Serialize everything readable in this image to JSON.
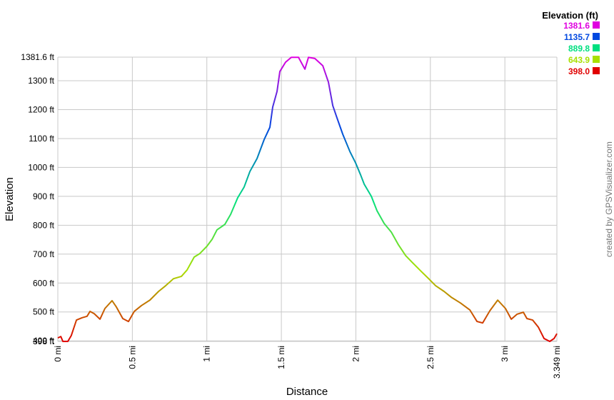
{
  "chart_data": {
    "type": "line",
    "legend_title": "Elevation (ft)",
    "x_label": "Distance",
    "y_label": "Elevation",
    "credit": "created by GPSVisualizer.com",
    "grid": true,
    "legend_position": "top-right",
    "color_scale": [
      {
        "value": 1381.6,
        "color": "#e000e0"
      },
      {
        "value": 1135.7,
        "color": "#0048e0"
      },
      {
        "value": 889.8,
        "color": "#00e080"
      },
      {
        "value": 643.9,
        "color": "#a8e000"
      },
      {
        "value": 398,
        "label": "398.0",
        "color": "#e00000"
      }
    ],
    "xlim": [
      0,
      3.349
    ],
    "xticks": [
      {
        "value": 0,
        "label": "0 mi"
      },
      {
        "value": 0.5,
        "label": "0.5 mi"
      },
      {
        "value": 1,
        "label": "1 mi"
      },
      {
        "value": 1.5,
        "label": "1.5 mi"
      },
      {
        "value": 2,
        "label": "2 mi"
      },
      {
        "value": 2.5,
        "label": "2.5 mi"
      },
      {
        "value": 3,
        "label": "3 mi"
      },
      {
        "value": 3.349,
        "label": "3.349 mi"
      }
    ],
    "ylim": [
      398,
      1381.6
    ],
    "yticks": [
      {
        "value": 398,
        "label": "398 ft"
      },
      {
        "value": 400,
        "label": "400 ft"
      },
      {
        "value": 500,
        "label": "500 ft"
      },
      {
        "value": 600,
        "label": "600 ft"
      },
      {
        "value": 700,
        "label": "700 ft"
      },
      {
        "value": 800,
        "label": "800 ft"
      },
      {
        "value": 900,
        "label": "900 ft"
      },
      {
        "value": 1000,
        "label": "1000 ft"
      },
      {
        "value": 1100,
        "label": "1100 ft"
      },
      {
        "value": 1200,
        "label": "1200 ft"
      },
      {
        "value": 1300,
        "label": "1300 ft"
      },
      {
        "value": 1381.6,
        "label": "1381.6 ft"
      }
    ],
    "x": [
      0,
      0.02,
      0.034,
      0.067,
      0.09,
      0.125,
      0.163,
      0.196,
      0.216,
      0.244,
      0.283,
      0.316,
      0.364,
      0.393,
      0.436,
      0.474,
      0.513,
      0.561,
      0.618,
      0.676,
      0.724,
      0.776,
      0.829,
      0.867,
      0.915,
      0.953,
      1.0,
      1.035,
      1.068,
      1.121,
      1.16,
      1.207,
      1.25,
      1.289,
      1.337,
      1.385,
      1.423,
      1.442,
      1.471,
      1.49,
      1.528,
      1.567,
      1.615,
      1.658,
      1.682,
      1.725,
      1.778,
      1.816,
      1.845,
      1.873,
      1.912,
      1.96,
      1.998,
      2.032,
      2.056,
      2.104,
      2.142,
      2.19,
      2.238,
      2.286,
      2.334,
      2.381,
      2.439,
      2.487,
      2.535,
      2.592,
      2.64,
      2.702,
      2.765,
      2.813,
      2.851,
      2.899,
      2.952,
      3.004,
      3.043,
      3.081,
      3.124,
      3.148,
      3.186,
      3.225,
      3.263,
      3.301,
      3.33,
      3.349
    ],
    "values": [
      410,
      415,
      398,
      398,
      418,
      472,
      480,
      485,
      502,
      494,
      475,
      512,
      539,
      517,
      477,
      467,
      502,
      522,
      541,
      571,
      591,
      615,
      623,
      645,
      690,
      702,
      727,
      751,
      784,
      803,
      838,
      895,
      932,
      986,
      1031,
      1097,
      1139,
      1209,
      1263,
      1332,
      1364,
      1381,
      1381,
      1340,
      1381,
      1377,
      1352,
      1295,
      1214,
      1172,
      1115,
      1055,
      1016,
      974,
      942,
      900,
      850,
      806,
      776,
      732,
      695,
      670,
      640,
      616,
      591,
      571,
      551,
      531,
      507,
      467,
      462,
      504,
      541,
      512,
      475,
      492,
      499,
      477,
      472,
      447,
      408,
      398,
      408,
      425
    ]
  }
}
